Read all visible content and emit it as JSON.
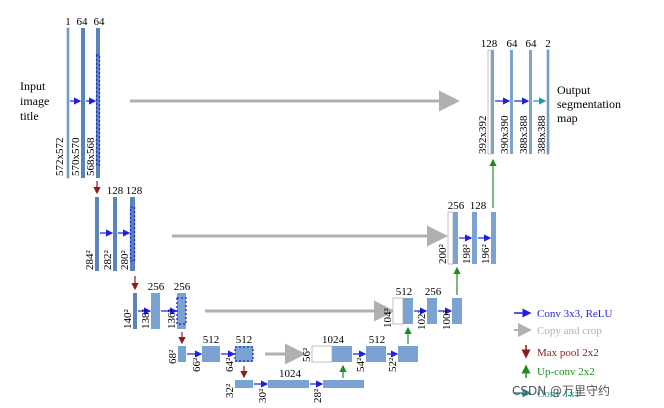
{
  "input_label": [
    "Input",
    "image",
    "title"
  ],
  "output_label": [
    "Output",
    "segmentation",
    "map"
  ],
  "blocks": [
    {
      "top": "1",
      "side": "572x572"
    },
    {
      "top": "64",
      "side": "570x570"
    },
    {
      "top": "64",
      "side": "568x568"
    },
    {
      "top": "",
      "side": ""
    },
    {
      "top": "128",
      "side": "284²"
    },
    {
      "top": "",
      "side": "282²"
    },
    {
      "top": "128",
      "side": "280²"
    },
    {
      "top": "",
      "side": "140²"
    },
    {
      "top": "256",
      "side": "138²"
    },
    {
      "top": "256",
      "side": "136²"
    },
    {
      "top": "",
      "side": "68²"
    },
    {
      "top": "512",
      "side": "66²"
    },
    {
      "top": "512",
      "side": "64²"
    },
    {
      "top": "",
      "side": "32²"
    },
    {
      "top": "1024",
      "side": "30²"
    },
    {
      "top": "",
      "side": "28²"
    },
    {
      "top": "1024",
      "side": "56²"
    },
    {
      "top": "512",
      "side": "54²"
    },
    {
      "top": "",
      "side": "52²"
    },
    {
      "top": "512",
      "side": "104²"
    },
    {
      "top": "256",
      "side": "102²"
    },
    {
      "top": "",
      "side": "100²"
    },
    {
      "top": "256",
      "side": "200²"
    },
    {
      "top": "128",
      "side": "198²"
    },
    {
      "top": "",
      "side": "196²"
    },
    {
      "top": "128",
      "side": "392x392"
    },
    {
      "top": "64",
      "side": "390x390"
    },
    {
      "top": "64",
      "side": "388x388"
    },
    {
      "top": "2",
      "side": "388x388"
    }
  ],
  "legend": [
    {
      "text": "Conv 3x3, ReLU",
      "color": "#1f1fe0"
    },
    {
      "text": "Copy and crop",
      "color": "#b0b0b0"
    },
    {
      "text": "Max pool 2x2",
      "color": "#8b1a1a"
    },
    {
      "text": "Up-conv 2x2",
      "color": "#1e8c1e"
    },
    {
      "text": "Conv 1x1",
      "color": "#1a9a9a"
    }
  ],
  "watermark": "CSDN @万里守约",
  "colors": {
    "block": "#7aa3d2",
    "block_dark": "#5d84b8",
    "conv": "#1f1fe0",
    "copy": "#b0b0b0",
    "pool": "#8b1a1a",
    "upconv": "#1e8c1e",
    "conv1": "#1a9a9a"
  }
}
